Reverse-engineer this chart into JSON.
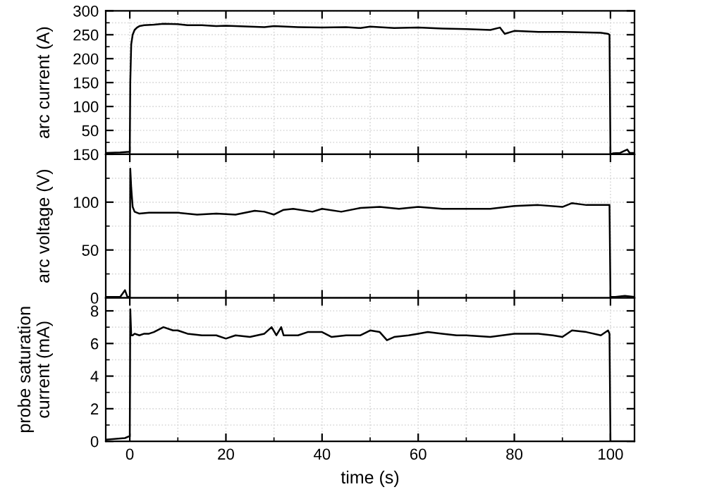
{
  "chart_data": [
    {
      "type": "line",
      "ylabel": "arc current (A)",
      "xlim": [
        -5,
        105
      ],
      "xticks": [
        0,
        20,
        40,
        60,
        80,
        100
      ],
      "ylim": [
        0,
        300
      ],
      "yticks": [
        {
          "value": 0,
          "label": null
        },
        50,
        100,
        150,
        200,
        250,
        300
      ],
      "grid": true,
      "tick_labels": "y",
      "line_style": "solid",
      "color": "#000000",
      "x": [
        -5,
        -2,
        -0.5,
        0,
        0.1,
        0.3,
        0.6,
        1,
        1.5,
        2,
        3,
        5,
        7,
        10,
        12,
        15,
        18,
        20,
        25,
        28,
        30,
        35,
        40,
        45,
        48,
        50,
        55,
        60,
        65,
        70,
        75,
        77,
        78,
        80,
        85,
        90,
        95,
        98,
        99.5,
        99.8,
        100,
        100.5,
        102,
        103.5,
        104,
        105
      ],
      "values": [
        3,
        4,
        5,
        5,
        150,
        230,
        250,
        260,
        265,
        268,
        270,
        271,
        273,
        272,
        270,
        270,
        268,
        269,
        267,
        266,
        268,
        266,
        265,
        266,
        264,
        267,
        264,
        265,
        263,
        262,
        260,
        265,
        252,
        258,
        256,
        256,
        255,
        254,
        252,
        250,
        0,
        2,
        3,
        10,
        3,
        3
      ]
    },
    {
      "type": "line",
      "ylabel": "arc voltage (V)",
      "xlim": [
        -5,
        105
      ],
      "xticks": [
        0,
        20,
        40,
        60,
        80,
        100
      ],
      "ylim": [
        0,
        150
      ],
      "yticks": [
        0,
        50,
        100,
        150
      ],
      "grid": true,
      "tick_labels": "y",
      "line_style": "solid",
      "color": "#000000",
      "x": [
        -5,
        -2,
        -1,
        -0.5,
        0,
        0.1,
        0.3,
        0.6,
        1,
        2,
        4,
        6,
        10,
        14,
        18,
        22,
        26,
        28,
        30,
        32,
        34,
        38,
        40,
        44,
        48,
        52,
        56,
        60,
        65,
        70,
        75,
        80,
        85,
        90,
        92,
        95,
        98,
        99.5,
        99.8,
        100,
        101,
        103,
        105
      ],
      "values": [
        1,
        1,
        8,
        1,
        1,
        135,
        115,
        95,
        90,
        88,
        89,
        89,
        89,
        87,
        88,
        87,
        91,
        90,
        87,
        92,
        93,
        90,
        93,
        90,
        94,
        95,
        93,
        95,
        93,
        93,
        93,
        96,
        97,
        95,
        99,
        97,
        97,
        97,
        97,
        1,
        1,
        2,
        1
      ]
    },
    {
      "type": "line",
      "ylabel": "probe saturation\ncurrent (mA)",
      "xlabel": "time (s)",
      "xlim": [
        -5,
        105
      ],
      "xticks": [
        0,
        20,
        40,
        60,
        80,
        100
      ],
      "ylim": [
        0,
        8.8
      ],
      "yticks": [
        0,
        2,
        4,
        6,
        8
      ],
      "grid": true,
      "line_style": "solid",
      "color": "#000000",
      "x": [
        -5,
        -1,
        -0.2,
        0,
        0.1,
        0.3,
        0.6,
        1,
        2,
        3,
        4,
        5,
        7,
        9,
        10,
        12,
        15,
        18,
        20,
        22,
        25,
        28,
        29.5,
        30.5,
        31.5,
        32,
        35,
        37,
        40,
        42,
        45,
        48,
        50,
        52,
        53.5,
        55,
        58,
        60,
        62,
        65,
        68,
        70,
        75,
        80,
        85,
        88,
        90,
        92,
        95,
        98,
        99.5,
        99.8,
        100,
        102,
        105
      ],
      "values": [
        0.1,
        0.2,
        0.3,
        0.3,
        8.1,
        6.5,
        6.5,
        6.6,
        6.5,
        6.6,
        6.6,
        6.7,
        7.0,
        6.8,
        6.8,
        6.6,
        6.5,
        6.5,
        6.3,
        6.5,
        6.4,
        6.6,
        7.0,
        6.5,
        7.0,
        6.5,
        6.5,
        6.7,
        6.7,
        6.4,
        6.5,
        6.5,
        6.8,
        6.7,
        6.2,
        6.4,
        6.5,
        6.6,
        6.7,
        6.6,
        6.5,
        6.5,
        6.4,
        6.6,
        6.6,
        6.5,
        6.4,
        6.8,
        6.7,
        6.5,
        6.8,
        6.6,
        0,
        0,
        0
      ]
    }
  ]
}
